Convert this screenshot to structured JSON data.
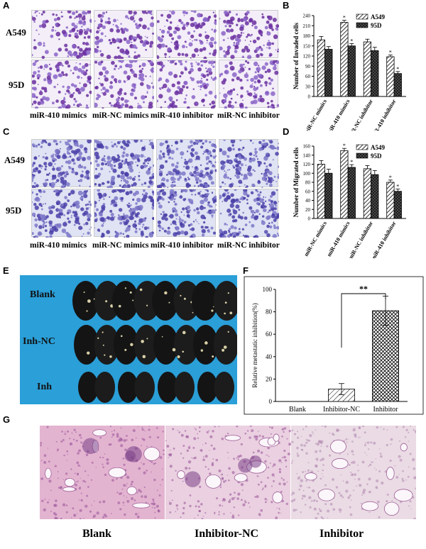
{
  "panels": {
    "A": {
      "label": "A",
      "rows": [
        "A549",
        "95D"
      ],
      "captions": [
        "miR-410 mimics",
        "miR-NC mimics",
        "miR-410 inhibitor",
        "miR-NC inhibitor"
      ]
    },
    "C": {
      "label": "C",
      "rows": [
        "A549",
        "95D"
      ],
      "captions": [
        "miR-410 mimics",
        "miR-NC mimics",
        "miR-410 inhibitor",
        "miR-NC inhibitor"
      ]
    },
    "E": {
      "label": "E",
      "rows": [
        "Blank",
        "Inh-NC",
        "Inh"
      ]
    },
    "G": {
      "label": "G",
      "captions": [
        "Blank",
        "Inhibitor-NC",
        "Inhibitor"
      ]
    }
  },
  "colors": {
    "crystal_violet_dark": "#6a2fa0",
    "crystal_violet_light": "#8a64c8",
    "migration_blue": "#4a3fa8",
    "plate_blue": "#2a9fd8",
    "he_pink": "#d9a8c8"
  },
  "chart_data": [
    {
      "panel": "B",
      "label": "B",
      "type": "bar",
      "categories": [
        "miR-NC mimics",
        "miR-410 mimics",
        "miR-NC inhibitor",
        "miR-410 inhibitor"
      ],
      "series": [
        {
          "name": "A549",
          "values": [
            168,
            220,
            162,
            118
          ],
          "errors": [
            10,
            6,
            8,
            5
          ]
        },
        {
          "name": "95D",
          "values": [
            140,
            150,
            136,
            68
          ],
          "errors": [
            8,
            7,
            10,
            6
          ]
        }
      ],
      "annotations": [
        "*",
        "*",
        "*",
        "*"
      ],
      "ylabel": "Number of Invaded cells",
      "ylim": [
        0,
        240
      ],
      "yticks": [
        0,
        30,
        60,
        90,
        120,
        150,
        180,
        210,
        240
      ],
      "legend": "top-right"
    },
    {
      "panel": "D",
      "label": "D",
      "type": "bar",
      "categories": [
        "miR-NC mimics",
        "miR-410 mimics",
        "miR-NC inhibitor",
        "miR-410 inhibitor"
      ],
      "series": [
        {
          "name": "A549",
          "values": [
            120,
            150,
            110,
            80
          ],
          "errors": [
            8,
            5,
            7,
            5
          ]
        },
        {
          "name": "95D",
          "values": [
            100,
            113,
            97,
            60
          ],
          "errors": [
            9,
            6,
            9,
            5
          ]
        }
      ],
      "annotations": [
        "*",
        "*",
        "*",
        "*"
      ],
      "ylabel": "Number of Migrated cells",
      "ylim": [
        0,
        160
      ],
      "yticks": [
        0,
        20,
        40,
        60,
        80,
        100,
        120,
        140,
        160
      ],
      "legend": "top-right"
    },
    {
      "panel": "F",
      "label": "F",
      "type": "bar",
      "categories": [
        "Blank",
        "Inhibitor-NC",
        "Inhibitor"
      ],
      "series": [
        {
          "values": [
            0,
            11,
            81
          ],
          "errors": [
            0,
            5,
            13
          ]
        }
      ],
      "significance": "**",
      "ylabel": "Relative metastatic inhibition(%)",
      "ylim": [
        0,
        100
      ],
      "yticks": [
        0,
        20,
        40,
        60,
        80,
        100
      ]
    }
  ]
}
